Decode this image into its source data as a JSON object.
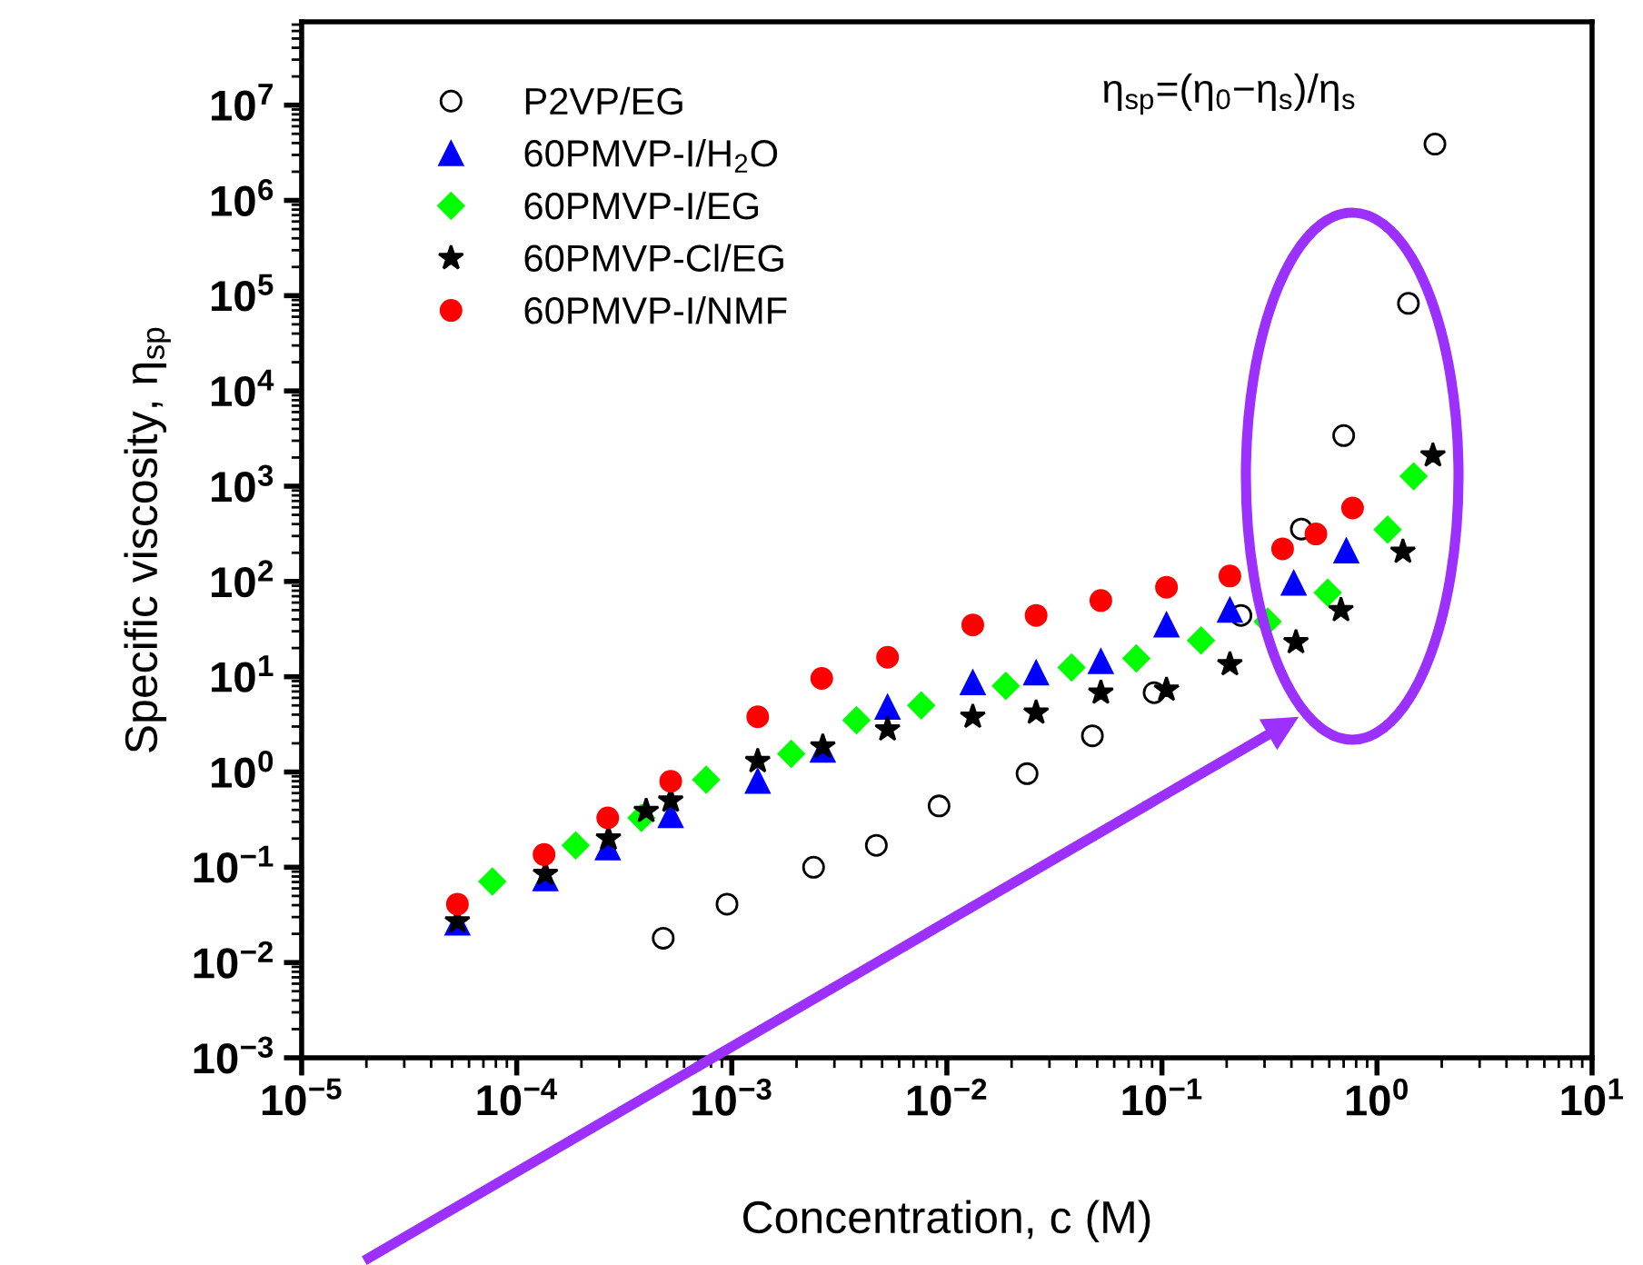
{
  "chart_data": {
    "type": "scatter",
    "xlabel": "Concentration, c (M)",
    "ylabel": "Specific viscosity, η$_{sp}$",
    "log": "xy",
    "grid": false,
    "legend": "top left",
    "xlim": [
      1e-05,
      10
    ],
    "ylim": [
      0.001,
      75000000.0
    ],
    "xticks": [
      {
        "value": 1e-05,
        "label": "10$^{−5}$"
      },
      {
        "value": 0.0001,
        "label": "10$^{−4}$"
      },
      {
        "value": 0.001,
        "label": "10$^{−3}$"
      },
      {
        "value": 0.01,
        "label": "10$^{−2}$"
      },
      {
        "value": 0.1,
        "label": "10$^{−1}$"
      },
      {
        "value": 1,
        "label": "10$^{0}$"
      },
      {
        "value": 10,
        "label": "10$^{1}$"
      }
    ],
    "yticks": [
      {
        "value": 0.001,
        "label": "10$^{−3}$"
      },
      {
        "value": 0.01,
        "label": "10$^{−2}$"
      },
      {
        "value": 0.1,
        "label": "10$^{−1}$"
      },
      {
        "value": 1,
        "label": "10$^{0}$"
      },
      {
        "value": 10,
        "label": "10$^{1}$"
      },
      {
        "value": 100,
        "label": "10$^{2}$"
      },
      {
        "value": 1000,
        "label": "10$^{3}$"
      },
      {
        "value": 10000,
        "label": "10$^{4}$"
      },
      {
        "value": 100000,
        "label": "10$^{5}$"
      },
      {
        "value": 1000000,
        "label": "10$^{6}$"
      },
      {
        "value": 10000000,
        "label": "10$^{7}$"
      }
    ],
    "annotations": [
      "η$_{sp}$=(η$_{0}$−η$_{s}$)/η$_{s}$"
    ],
    "series": [
      {
        "name": "P2VP/EG",
        "color": "#000000",
        "marker": "circle",
        "x": [
          0.00048,
          0.00095,
          0.0024,
          0.0047,
          0.0092,
          0.0236,
          0.0475,
          0.092,
          0.233,
          0.445,
          0.7,
          1.4,
          1.86
        ],
        "values": [
          0.018,
          0.041,
          0.1,
          0.17,
          0.44,
          0.96,
          2.4,
          6.8,
          44,
          355,
          3400,
          83000,
          3900000
        ]
      },
      {
        "name": "60PMVP-I/H$_{2}$O",
        "color": "#0000ff",
        "marker": "triangle",
        "x": [
          5.3e-05,
          0.000136,
          0.000265,
          0.00052,
          0.00132,
          0.00265,
          0.0053,
          0.0132,
          0.026,
          0.052,
          0.105,
          0.207,
          0.41,
          0.72
        ],
        "values": [
          0.026,
          0.076,
          0.16,
          0.35,
          0.8,
          1.7,
          4.8,
          8.7,
          11,
          14.5,
          35,
          50,
          96,
          210
        ]
      },
      {
        "name": "60PMVP-I/EG",
        "color": "#00ff00",
        "marker": "diamond",
        "x": [
          7.7e-05,
          0.000188,
          0.00038,
          0.00076,
          0.00189,
          0.0038,
          0.0076,
          0.0188,
          0.038,
          0.076,
          0.152,
          0.31,
          0.59,
          1.12,
          1.48
        ],
        "values": [
          0.071,
          0.17,
          0.33,
          0.83,
          1.55,
          3.5,
          5.0,
          8,
          12.5,
          15.6,
          24,
          38,
          76,
          350,
          1270
        ]
      },
      {
        "name": "60PMVP-Cl/EG",
        "color": "#000000",
        "marker": "star",
        "x": [
          5.3e-05,
          0.000136,
          0.000267,
          0.0004,
          0.00052,
          0.00132,
          0.00265,
          0.0053,
          0.0132,
          0.026,
          0.052,
          0.105,
          0.207,
          0.42,
          0.68,
          1.32,
          1.82
        ],
        "values": [
          0.027,
          0.085,
          0.2,
          0.39,
          0.5,
          1.3,
          1.85,
          2.8,
          3.8,
          4.2,
          6.8,
          7.3,
          13.5,
          23,
          50,
          205,
          2100
        ]
      },
      {
        "name": "60PMVP-I/NMF",
        "color": "#ff0000",
        "marker": "circle",
        "x": [
          5.3e-05,
          0.000134,
          0.000265,
          0.00052,
          0.00132,
          0.00262,
          0.0053,
          0.0132,
          0.026,
          0.052,
          0.105,
          0.207,
          0.364,
          0.52,
          0.77
        ],
        "values": [
          0.041,
          0.136,
          0.33,
          0.8,
          3.8,
          9.6,
          16,
          35,
          44,
          63,
          87,
          114,
          220,
          315,
          590
        ]
      }
    ]
  }
}
